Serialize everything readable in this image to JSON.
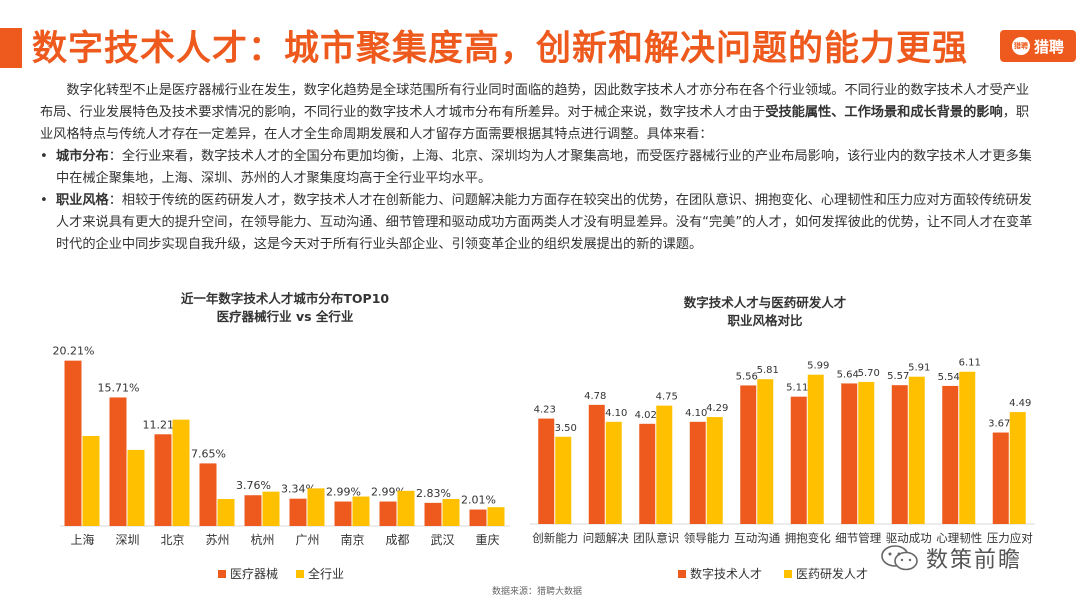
{
  "header": {
    "title": "数字技术人才：城市聚集度高，创新和解决问题的能力更强",
    "logo_text": "猎聘",
    "logo_mark": "猎聘"
  },
  "body": {
    "intro_1": "数字化转型不止是医疗器械行业在发生，数字化趋势是全球范围所有行业同时面临的趋势，因此数字技术人才亦分布在各个行业领域。不同行业的数字技术人才受产业布局、行业发展特色及技术要求情况的影响，不同行业的数字技术人才城市分布有所差异。对于械企来说，数字技术人才由于",
    "intro_bold": "受技能属性、工作场景和成长背景的影响",
    "intro_2": "，职业风格特点与传统人才存在一定差异，在人才全生命周期发展和人才留存方面需要根据其特点进行调整。具体来看：",
    "bullet_1_label": "城市分布",
    "bullet_1_text": "：全行业来看，数字技术人才的全国分布更加均衡，上海、北京、深圳均为人才聚集高地，而受医疗器械行业的产业布局影响，该行业内的数字技术人才更多集中在械企聚集地，上海、深圳、苏州的人才聚集度均高于全行业平均水平。",
    "bullet_2_label": "职业风格",
    "bullet_2_text": "：相较于传统的医药研发人才，数字技术人才在创新能力、问题解决能力方面存在较突出的优势，在团队意识、拥抱变化、心理韧性和压力应对方面较传统研发人才来说具有更大的提升空间，在领导能力、互动沟通、细节管理和驱动成功方面两类人才没有明显差异。没有“完美”的人才，如何发挥彼此的优势，让不同人才在变革时代的企业中同步实现自我升级，这是今天对于所有行业头部企业、引领变革企业的组织发展提出的新的课题。",
    "bullet_symbol": "•"
  },
  "colors": {
    "primary": "#EE5A1D",
    "secondary": "#FFC000",
    "accent": "#EE5A1D"
  },
  "chart_data": [
    {
      "type": "bar",
      "title": "近一年数字技术人才城市分布TOP10",
      "subtitle": "医疗器械行业 vs 全行业",
      "categories": [
        "上海",
        "深圳",
        "北京",
        "苏州",
        "杭州",
        "广州",
        "南京",
        "成都",
        "武汉",
        "重庆"
      ],
      "series": [
        {
          "name": "医疗器械",
          "color": "#EE5A1D",
          "values": [
            20.21,
            15.71,
            11.21,
            7.65,
            3.76,
            3.34,
            2.99,
            2.99,
            2.83,
            2.01
          ],
          "labels": [
            "20.21%",
            "15.71%",
            "11.21%",
            "7.65%",
            "3.76%",
            "3.34%",
            "2.99%",
            "2.99%",
            "2.83%",
            "2.01%"
          ]
        },
        {
          "name": "全行业",
          "color": "#FFC000",
          "values": [
            11.0,
            9.3,
            13.0,
            3.3,
            4.2,
            4.6,
            3.6,
            4.3,
            3.3,
            2.3
          ]
        }
      ],
      "ylim": [
        0,
        22
      ],
      "legend": "bottom"
    },
    {
      "type": "bar",
      "title": "数字技术人才与医药研发人才",
      "subtitle": "职业风格对比",
      "categories": [
        "创新能力",
        "问题解决",
        "团队意识",
        "领导能力",
        "互动沟通",
        "拥抱变化",
        "细节管理",
        "驱动成功",
        "心理韧性",
        "压力应对"
      ],
      "series": [
        {
          "name": "数字技术人才",
          "color": "#EE5A1D",
          "values": [
            4.23,
            4.78,
            4.02,
            4.1,
            5.56,
            5.11,
            5.64,
            5.57,
            5.54,
            3.67
          ],
          "labels": [
            "4.23",
            "4.78",
            "4.02",
            "4.10",
            "5.56",
            "5.11",
            "5.64",
            "5.57",
            "5.54",
            "3.67"
          ]
        },
        {
          "name": "医药研发人才",
          "color": "#FFC000",
          "values": [
            3.5,
            4.1,
            4.75,
            4.29,
            5.81,
            5.99,
            5.7,
            5.91,
            6.11,
            4.49
          ],
          "labels": [
            "3.50",
            "4.10",
            "4.75",
            "4.29",
            "5.81",
            "5.99",
            "5.70",
            "5.91",
            "6.11",
            "4.49"
          ]
        }
      ],
      "ylim": [
        0,
        6.5
      ],
      "legend": "bottom"
    }
  ],
  "footer": {
    "source": "数据来源：猎聘大数据",
    "watermark": "数策前瞻"
  }
}
